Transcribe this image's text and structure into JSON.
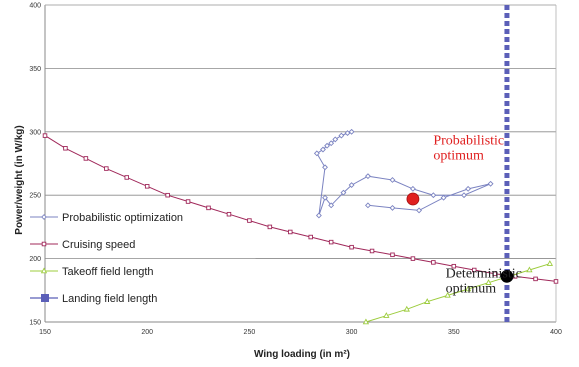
{
  "chart_data": {
    "type": "line",
    "title": "",
    "xlabel": "Wing loading (in m²)",
    "ylabel": "Power/weight (in W/kg)",
    "xlim": [
      150,
      400
    ],
    "ylim": [
      150,
      400
    ],
    "x_ticks": [
      150,
      200,
      250,
      300,
      350,
      400
    ],
    "y_ticks": [
      150,
      200,
      250,
      300,
      350,
      400
    ],
    "grid": "horizontal",
    "legend_position": "left",
    "series": [
      {
        "name": "Probabilistic optimization",
        "color": "#7b83c1",
        "marker": "diamond",
        "x": [
          300,
          298,
          295,
          292,
          290,
          288,
          286,
          283,
          287,
          284,
          287,
          290,
          296,
          300,
          308,
          320,
          330,
          340,
          355,
          368,
          357,
          345,
          333,
          320,
          308
        ],
        "y": [
          300,
          299,
          297,
          294,
          291,
          289,
          286,
          283,
          272,
          234,
          248,
          242,
          252,
          258,
          265,
          262,
          255,
          250,
          250,
          259,
          255,
          248,
          238,
          240,
          242
        ]
      },
      {
        "name": "Cruising speed",
        "color": "#a0285a",
        "marker": "square",
        "x": [
          150,
          160,
          170,
          180,
          190,
          200,
          210,
          220,
          230,
          240,
          250,
          260,
          270,
          280,
          290,
          300,
          310,
          320,
          330,
          340,
          350,
          360,
          370,
          380,
          390,
          400
        ],
        "y": [
          297,
          287,
          279,
          271,
          264,
          257,
          250,
          245,
          240,
          235,
          230,
          225,
          221,
          217,
          213,
          209,
          206,
          203,
          200,
          197,
          194,
          191,
          188,
          186,
          184,
          182
        ]
      },
      {
        "name": "Takeoff field length",
        "color": "#9ccc3c",
        "marker": "triangle",
        "x": [
          307,
          317,
          327,
          337,
          347,
          357,
          367,
          377,
          387,
          397
        ],
        "y": [
          150,
          155,
          160,
          166,
          171,
          176,
          181,
          186,
          191,
          196
        ]
      },
      {
        "name": "Landing field length",
        "color": "#5b5fb8",
        "marker": "square",
        "x": [
          376,
          376
        ],
        "y": [
          150,
          400
        ]
      }
    ],
    "horizontal_line": {
      "y": 200,
      "x_start": 253,
      "x_end": 400
    },
    "points": [
      {
        "name": "probabilistic-optimum",
        "x": 330,
        "y": 247,
        "color": "#e02020"
      },
      {
        "name": "deterministic-optimum",
        "x": 376,
        "y": 186,
        "color": "#000000"
      }
    ],
    "annotations": [
      {
        "name": "probabilistic-optimum-label",
        "lines": [
          "Probabilistic",
          "optimum"
        ],
        "color": "#e02020",
        "x": 340,
        "y": 290
      },
      {
        "name": "deterministic-optimum-label",
        "lines": [
          "Deterministic",
          "optimum"
        ],
        "color": "#222222",
        "x": 346,
        "y": 185
      }
    ]
  }
}
